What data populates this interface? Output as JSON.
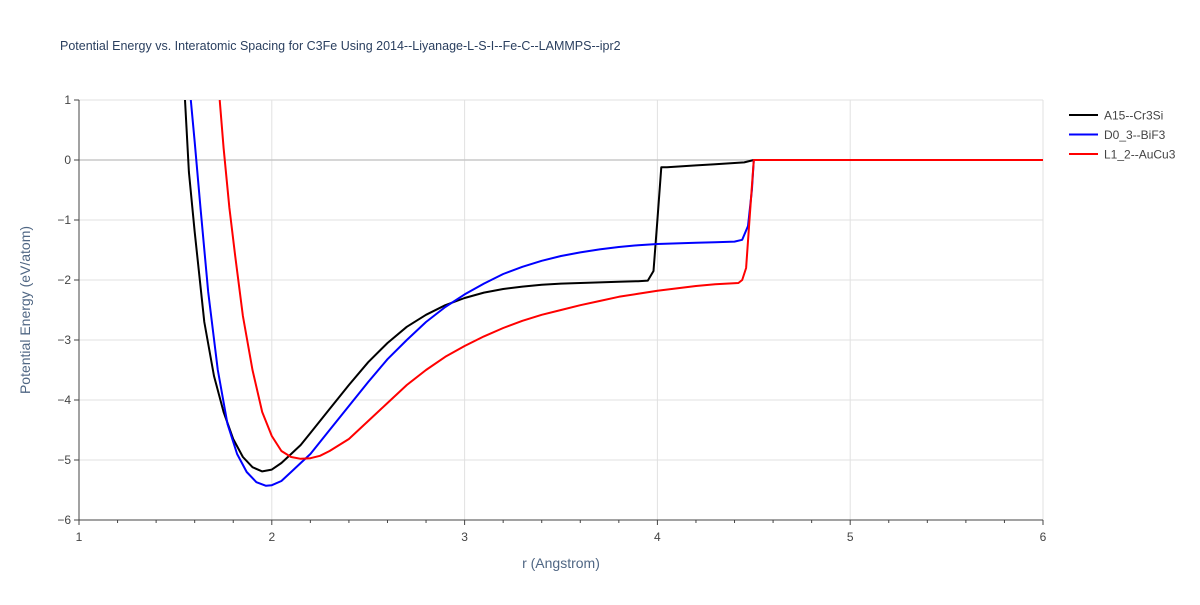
{
  "chart_data": {
    "type": "line",
    "title": "Potential Energy vs. Interatomic Spacing for C3Fe Using 2014--Liyanage-L-S-I--Fe-C--LAMMPS--ipr2",
    "xlabel": "r (Angstrom)",
    "ylabel": "Potential Energy (eV/atom)",
    "xlim": [
      1,
      6
    ],
    "ylim": [
      -6,
      1
    ],
    "x_ticks": [
      1,
      2,
      3,
      4,
      5,
      6
    ],
    "x_tick_labels": [
      "1",
      "2",
      "3",
      "4",
      "5",
      "6"
    ],
    "y_ticks": [
      1,
      0,
      -1,
      -2,
      -3,
      -4,
      -5,
      -6
    ],
    "y_tick_labels": [
      "1",
      "0",
      "−1",
      "−2",
      "−3",
      "−4",
      "−5",
      "−6"
    ],
    "grid": true,
    "legend_position": "top-right",
    "series": [
      {
        "name": "A15--Cr3Si",
        "color": "#000000",
        "x": [
          1.55,
          1.57,
          1.6,
          1.65,
          1.7,
          1.75,
          1.8,
          1.85,
          1.9,
          1.95,
          2.0,
          2.05,
          2.1,
          2.15,
          2.2,
          2.3,
          2.4,
          2.5,
          2.6,
          2.7,
          2.8,
          2.9,
          3.0,
          3.1,
          3.2,
          3.3,
          3.4,
          3.5,
          3.6,
          3.7,
          3.8,
          3.9,
          3.95,
          3.98,
          4.0,
          4.02,
          4.05,
          4.1,
          4.2,
          4.3,
          4.4,
          4.45,
          4.5,
          4.6,
          5.0,
          5.5,
          6.0
        ],
        "y": [
          1.0,
          -0.2,
          -1.2,
          -2.7,
          -3.6,
          -4.2,
          -4.65,
          -4.95,
          -5.12,
          -5.19,
          -5.16,
          -5.05,
          -4.9,
          -4.75,
          -4.55,
          -4.15,
          -3.75,
          -3.37,
          -3.05,
          -2.78,
          -2.58,
          -2.42,
          -2.3,
          -2.21,
          -2.15,
          -2.11,
          -2.08,
          -2.06,
          -2.05,
          -2.04,
          -2.03,
          -2.02,
          -2.01,
          -1.85,
          -1.0,
          -0.12,
          -0.12,
          -0.11,
          -0.09,
          -0.07,
          -0.05,
          -0.04,
          0.0,
          0.0,
          0.0,
          0.0,
          0.0
        ]
      },
      {
        "name": "D0_3--BiF3",
        "color": "#0000ff",
        "x": [
          1.58,
          1.6,
          1.63,
          1.67,
          1.72,
          1.77,
          1.82,
          1.87,
          1.92,
          1.97,
          2.0,
          2.05,
          2.1,
          2.15,
          2.2,
          2.3,
          2.4,
          2.5,
          2.6,
          2.7,
          2.8,
          2.9,
          3.0,
          3.1,
          3.2,
          3.3,
          3.4,
          3.5,
          3.6,
          3.7,
          3.8,
          3.9,
          4.0,
          4.1,
          4.2,
          4.3,
          4.4,
          4.44,
          4.47,
          4.49,
          4.5,
          4.6,
          5.0,
          5.5,
          6.0
        ],
        "y": [
          1.0,
          0.3,
          -0.8,
          -2.2,
          -3.5,
          -4.4,
          -4.9,
          -5.2,
          -5.37,
          -5.43,
          -5.42,
          -5.35,
          -5.2,
          -5.05,
          -4.9,
          -4.5,
          -4.1,
          -3.7,
          -3.32,
          -3.0,
          -2.7,
          -2.45,
          -2.24,
          -2.06,
          -1.9,
          -1.78,
          -1.68,
          -1.6,
          -1.54,
          -1.49,
          -1.45,
          -1.42,
          -1.4,
          -1.39,
          -1.38,
          -1.37,
          -1.36,
          -1.33,
          -1.1,
          -0.5,
          0.0,
          0.0,
          0.0,
          0.0,
          0.0
        ]
      },
      {
        "name": "L1_2--AuCu3",
        "color": "#ff0000",
        "x": [
          1.73,
          1.75,
          1.78,
          1.81,
          1.85,
          1.9,
          1.95,
          2.0,
          2.05,
          2.1,
          2.15,
          2.2,
          2.25,
          2.3,
          2.4,
          2.5,
          2.6,
          2.7,
          2.8,
          2.9,
          3.0,
          3.1,
          3.2,
          3.3,
          3.4,
          3.5,
          3.6,
          3.7,
          3.8,
          3.9,
          4.0,
          4.1,
          4.2,
          4.3,
          4.42,
          4.44,
          4.46,
          4.48,
          4.5,
          4.6,
          5.0,
          5.5,
          6.0
        ],
        "y": [
          1.0,
          0.2,
          -0.8,
          -1.6,
          -2.6,
          -3.5,
          -4.2,
          -4.6,
          -4.85,
          -4.95,
          -4.98,
          -4.97,
          -4.93,
          -4.85,
          -4.65,
          -4.35,
          -4.05,
          -3.75,
          -3.5,
          -3.28,
          -3.1,
          -2.94,
          -2.8,
          -2.68,
          -2.58,
          -2.5,
          -2.42,
          -2.35,
          -2.28,
          -2.23,
          -2.18,
          -2.14,
          -2.1,
          -2.07,
          -2.05,
          -2.0,
          -1.8,
          -0.9,
          0.0,
          0.0,
          0.0,
          0.0,
          0.0
        ]
      }
    ]
  }
}
